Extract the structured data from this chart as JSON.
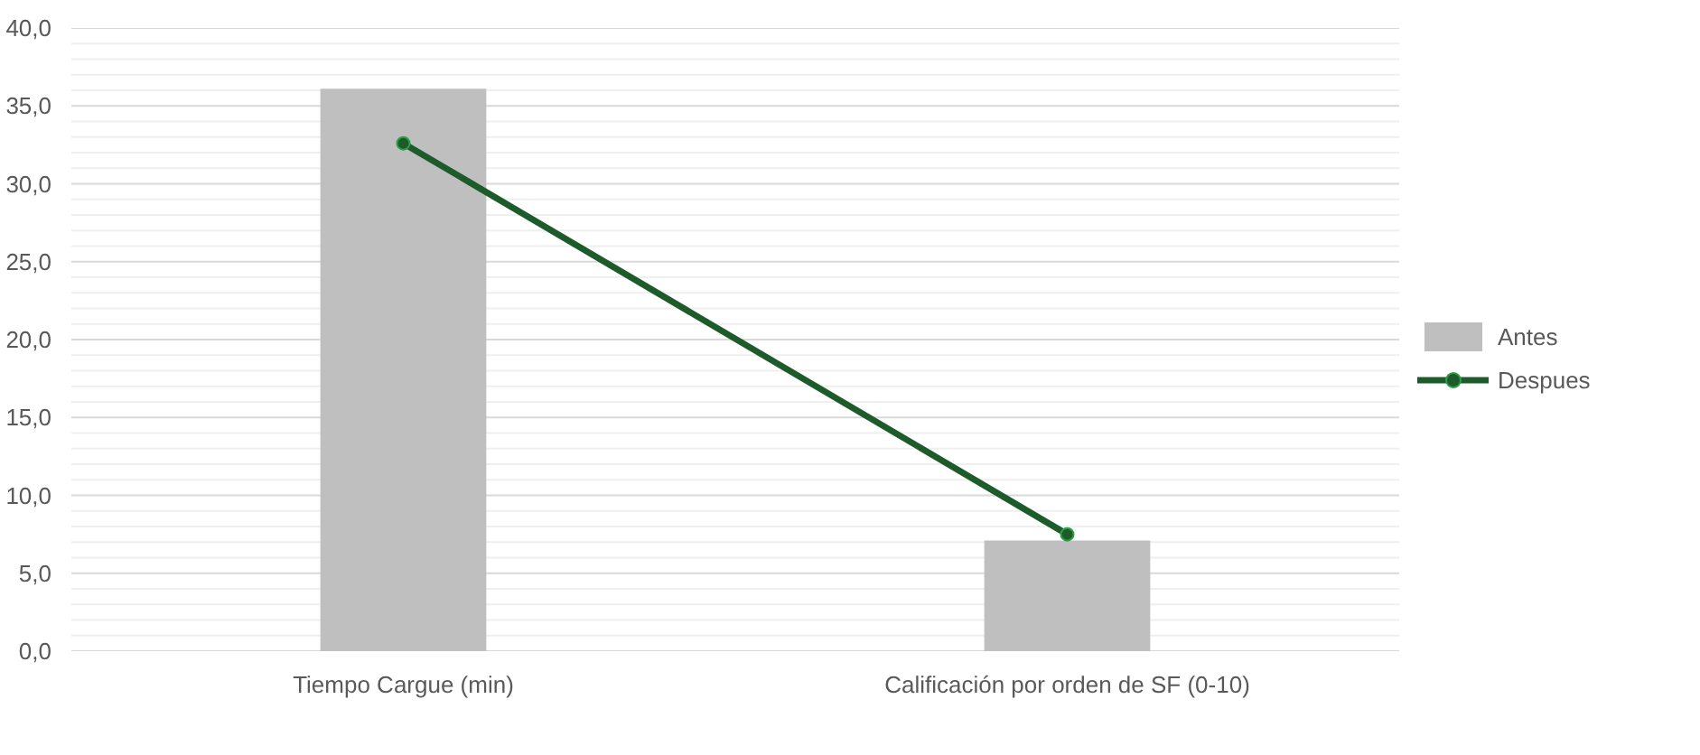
{
  "chart_data": {
    "type": "bar",
    "categories": [
      "Tiempo Cargue (min)",
      "Calificación por orden de SF (0-10)"
    ],
    "series": [
      {
        "name": "Antes",
        "type": "bar",
        "color": "#bfbfbf",
        "values": [
          36.1,
          7.1
        ]
      },
      {
        "name": "Despues",
        "type": "line",
        "color": "#1e5b2a",
        "values": [
          32.6,
          7.5
        ],
        "marker": "circle",
        "line_style": "solid"
      }
    ],
    "ylim": [
      0,
      40
    ],
    "yticks": [
      {
        "value": 0,
        "label": "0,0"
      },
      {
        "value": 1,
        "label": null
      },
      {
        "value": 2,
        "label": null
      },
      {
        "value": 3,
        "label": null
      },
      {
        "value": 4,
        "label": null
      },
      {
        "value": 5,
        "label": "5,0"
      },
      {
        "value": 6,
        "label": null
      },
      {
        "value": 7,
        "label": null
      },
      {
        "value": 8,
        "label": null
      },
      {
        "value": 9,
        "label": null
      },
      {
        "value": 10,
        "label": "10,0"
      },
      {
        "value": 11,
        "label": null
      },
      {
        "value": 12,
        "label": null
      },
      {
        "value": 13,
        "label": null
      },
      {
        "value": 14,
        "label": null
      },
      {
        "value": 15,
        "label": "15,0"
      },
      {
        "value": 16,
        "label": null
      },
      {
        "value": 17,
        "label": null
      },
      {
        "value": 18,
        "label": null
      },
      {
        "value": 19,
        "label": null
      },
      {
        "value": 20,
        "label": "20,0"
      },
      {
        "value": 21,
        "label": null
      },
      {
        "value": 22,
        "label": null
      },
      {
        "value": 23,
        "label": null
      },
      {
        "value": 24,
        "label": null
      },
      {
        "value": 25,
        "label": "25,0"
      },
      {
        "value": 26,
        "label": null
      },
      {
        "value": 27,
        "label": null
      },
      {
        "value": 28,
        "label": null
      },
      {
        "value": 29,
        "label": null
      },
      {
        "value": 30,
        "label": "30,0"
      },
      {
        "value": 31,
        "label": null
      },
      {
        "value": 32,
        "label": null
      },
      {
        "value": 33,
        "label": null
      },
      {
        "value": 34,
        "label": null
      },
      {
        "value": 35,
        "label": "35,0"
      },
      {
        "value": 36,
        "label": null
      },
      {
        "value": 37,
        "label": null
      },
      {
        "value": 38,
        "label": null
      },
      {
        "value": 39,
        "label": null
      },
      {
        "value": 40,
        "label": "40,0"
      }
    ],
    "grid": "y",
    "legend": "right"
  }
}
